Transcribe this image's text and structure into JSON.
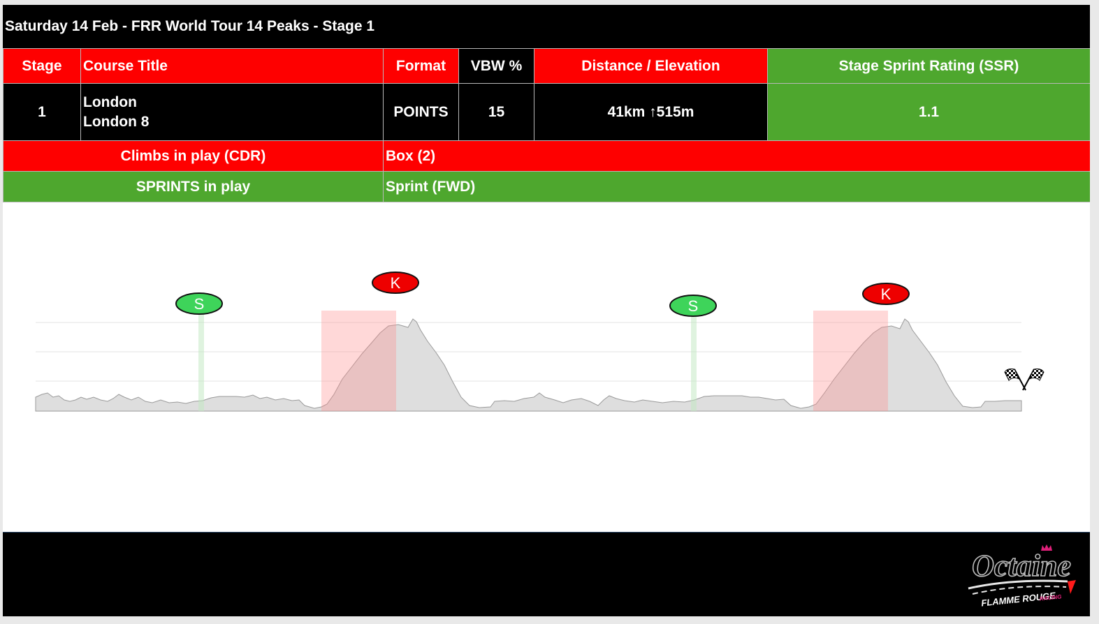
{
  "header": {
    "title": "Saturday 14 Feb - FRR World Tour 14 Peaks - Stage 1"
  },
  "table": {
    "headers": {
      "stage": "Stage",
      "course_title": "Course Title",
      "format": "Format",
      "vbw": "VBW %",
      "distance_elevation": "Distance / Elevation",
      "ssr": "Stage Sprint Rating (SSR)"
    },
    "row": {
      "stage": "1",
      "course_line1": "London",
      "course_line2": "London 8",
      "format": "POINTS",
      "vbw": "15",
      "distance_elevation": "41km ↑515m",
      "ssr": "1.1"
    },
    "climbs": {
      "label": "Climbs in play (CDR)",
      "value": "Box (2)"
    },
    "sprints": {
      "label": "SPRINTS in play",
      "value": "Sprint (FWD)"
    }
  },
  "profile": {
    "markers": [
      {
        "type": "sprint",
        "letter": "S"
      },
      {
        "type": "kom",
        "letter": "K"
      },
      {
        "type": "sprint",
        "letter": "S"
      },
      {
        "type": "kom",
        "letter": "K"
      }
    ],
    "finish_icon": "checkered-flags-icon"
  },
  "logo": {
    "name": "Octaine",
    "subtitle": "FLAMME ROUGE",
    "tag": "RACING"
  },
  "colors": {
    "red": "#fe0000",
    "green": "#4ea72e",
    "black": "#000000",
    "sprint_marker": "#3ed45a",
    "kom_marker": "#ee0000"
  }
}
